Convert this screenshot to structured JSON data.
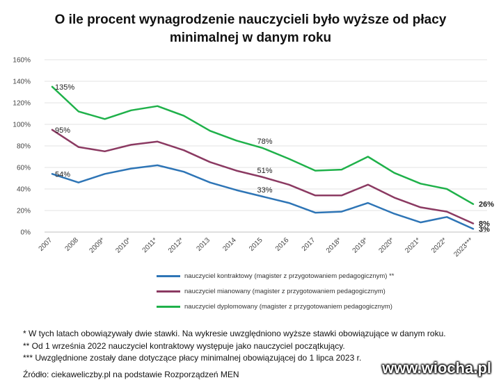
{
  "title_line1": "O ile procent wynagrodzenie nauczycieli było wyższe od płacy",
  "title_line2": "minimalnej w danym roku",
  "chart_data": {
    "type": "line",
    "title": "O ile procent wynagrodzenie nauczycieli było wyższe od płacy minimalnej w danym roku",
    "categories": [
      "2007",
      "2008",
      "2009*",
      "2010*",
      "2011*",
      "2012*",
      "2013",
      "2014",
      "2015",
      "2016",
      "2017",
      "2018*",
      "2019*",
      "2020*",
      "2021*",
      "2022*",
      "2023***"
    ],
    "y_ticks": [
      "0%",
      "20%",
      "40%",
      "60%",
      "80%",
      "100%",
      "120%",
      "140%",
      "160%"
    ],
    "ylim": [
      0,
      160
    ],
    "y_unit": "%",
    "grid": true,
    "legend_position": "bottom",
    "series": [
      {
        "name": "nauczyciel kontraktowy (magister z przygotowaniem pedagogicznym) **",
        "color": "#2e75b6",
        "values": [
          54,
          46,
          54,
          59,
          62,
          56,
          46,
          39,
          33,
          27,
          18,
          19,
          27,
          17,
          9,
          14,
          3
        ]
      },
      {
        "name": "nauczyciel mianowany (magister z przygotowaniem pedagogicznym)",
        "color": "#8b3a62",
        "values": [
          95,
          79,
          75,
          81,
          84,
          76,
          65,
          57,
          51,
          44,
          34,
          34,
          44,
          32,
          23,
          19,
          8
        ]
      },
      {
        "name": "nauczyciel dyplomowany (magister z przygotowaniem pedagogicznym)",
        "color": "#1fb14a",
        "values": [
          135,
          112,
          105,
          113,
          117,
          108,
          94,
          85,
          78,
          68,
          57,
          58,
          70,
          55,
          45,
          40,
          26
        ]
      }
    ],
    "data_labels": [
      {
        "series": 0,
        "index": 0,
        "text": "54%"
      },
      {
        "series": 0,
        "index": 8,
        "text": "33%"
      },
      {
        "series": 0,
        "index": 16,
        "text": "3%",
        "bold": true
      },
      {
        "series": 1,
        "index": 0,
        "text": "95%"
      },
      {
        "series": 1,
        "index": 8,
        "text": "51%"
      },
      {
        "series": 1,
        "index": 16,
        "text": "8%",
        "bold": true
      },
      {
        "series": 2,
        "index": 0,
        "text": "135%"
      },
      {
        "series": 2,
        "index": 8,
        "text": "78%"
      },
      {
        "series": 2,
        "index": 16,
        "text": "26%",
        "bold": true
      }
    ]
  },
  "notes": [
    "* W tych latach obowiązywały dwie stawki. Na wykresie uwzględniono wyższe stawki obowiązujące w danym roku.",
    "** Od 1 września 2022 nauczyciel kontraktowy występuje jako nauczyciel początkujący.",
    "*** Uwzględnione zostały dane dotyczące płacy minimalnej obowiązującej do 1 lipca 2023 r."
  ],
  "source": "Źródło: ciekaweliczby.pl na podstawie Rozporządzeń MEN",
  "watermark": "www.wiocha.pl"
}
